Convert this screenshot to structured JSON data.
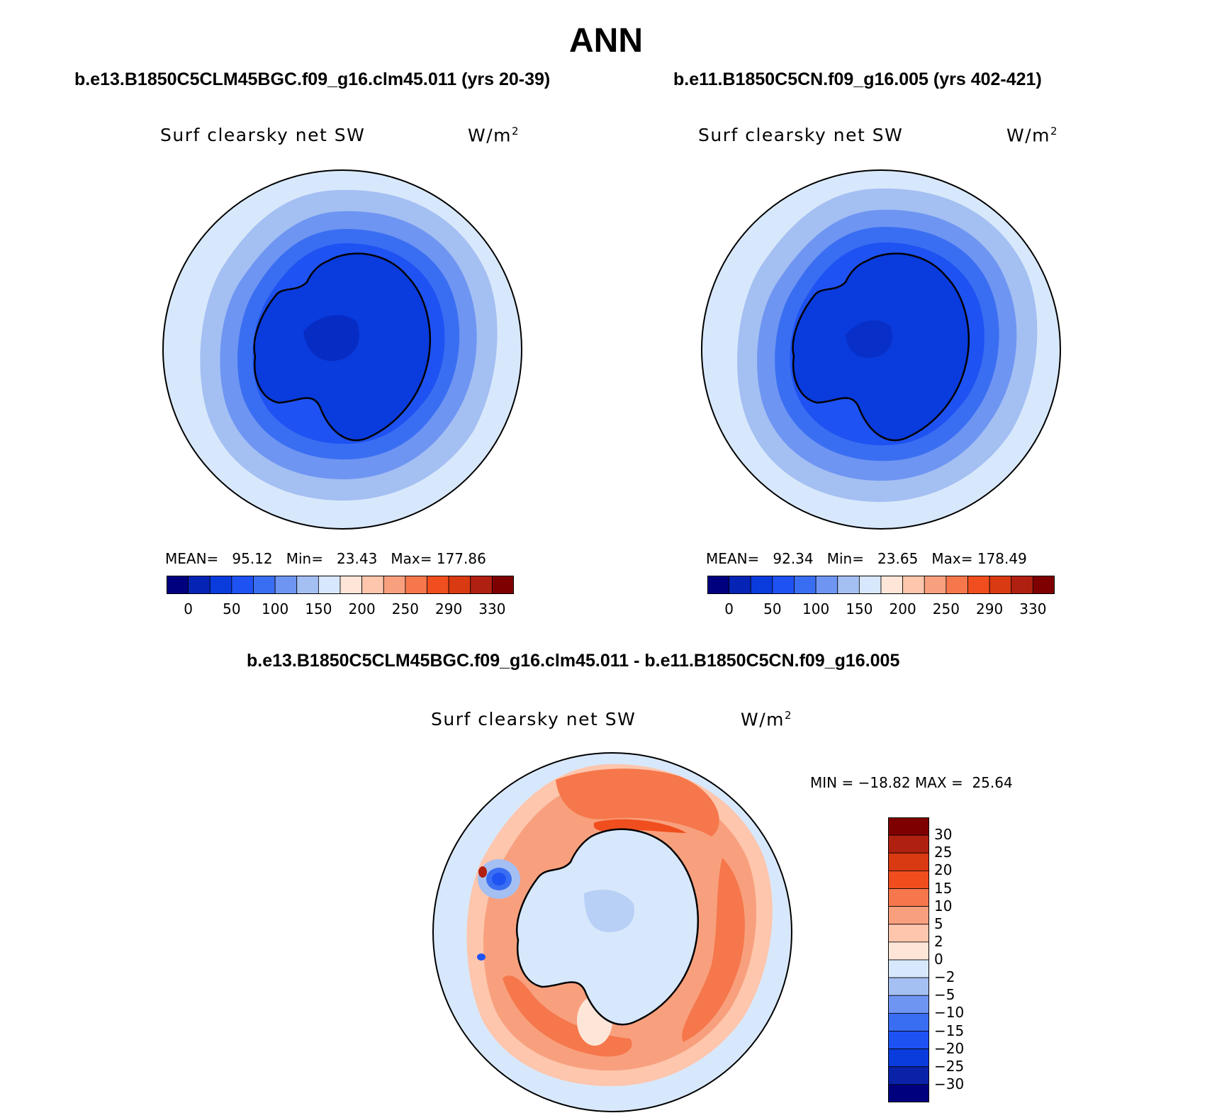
{
  "figure": {
    "title": "ANN",
    "diff_title": "b.e13.B1850C5CLM45BGC.f09_g16.clm45.011 - b.e11.B1850C5CN.f09_g16.005"
  },
  "panels": [
    {
      "case_title": "b.e13.B1850C5CLM45BGC.f09_g16.clm45.011 (yrs 20-39)",
      "variable": "Surf clearsky net SW",
      "units": "W/m",
      "units_sup": "2",
      "mean_label": "MEAN=",
      "mean": "95.12",
      "min_label": "Min=",
      "min": "23.43",
      "max_label": "Max=",
      "max": "177.86"
    },
    {
      "case_title": "b.e11.B1850C5CN.f09_g16.005 (yrs 402-421)",
      "variable": "Surf clearsky net SW",
      "units": "W/m",
      "units_sup": "2",
      "mean_label": "MEAN=",
      "mean": "92.34",
      "min_label": "Min=",
      "min": "23.65",
      "max_label": "Max=",
      "max": "178.49"
    }
  ],
  "diff_panel": {
    "variable": "Surf clearsky net SW",
    "units": "W/m",
    "units_sup": "2",
    "min_label": "MIN =",
    "min": "−18.82",
    "max_label": "MAX =",
    "max": "25.64"
  },
  "colorbar_abs": {
    "colors": [
      "#00007f",
      "#0523b4",
      "#0a3bdc",
      "#1f52f2",
      "#3a6ef2",
      "#6e95f2",
      "#a4bff2",
      "#d8e8fc",
      "#fde6d8",
      "#fdc6ad",
      "#f8a07e",
      "#f5774b",
      "#f04e1e",
      "#d93a12",
      "#b02010",
      "#7f0000"
    ],
    "tick_labels": [
      "0",
      "50",
      "100",
      "150",
      "200",
      "250",
      "290",
      "330"
    ]
  },
  "colorbar_diff": {
    "colors": [
      "#00007f",
      "#0a22a8",
      "#0a3bdc",
      "#1f52f2",
      "#3a6ef2",
      "#6e95f2",
      "#a4bff2",
      "#d8e8fc",
      "#fde6d8",
      "#fdc6ad",
      "#f8a07e",
      "#f5774b",
      "#f04e1e",
      "#d93a12",
      "#b02010",
      "#7f0000"
    ],
    "tick_labels": [
      "30",
      "25",
      "20",
      "15",
      "10",
      "5",
      "2",
      "0",
      "−2",
      "−5",
      "−10",
      "−15",
      "−20",
      "−25",
      "−30"
    ]
  },
  "maps": {
    "projection": "south-polar-stereographic",
    "land_mask": "Antarctica"
  }
}
